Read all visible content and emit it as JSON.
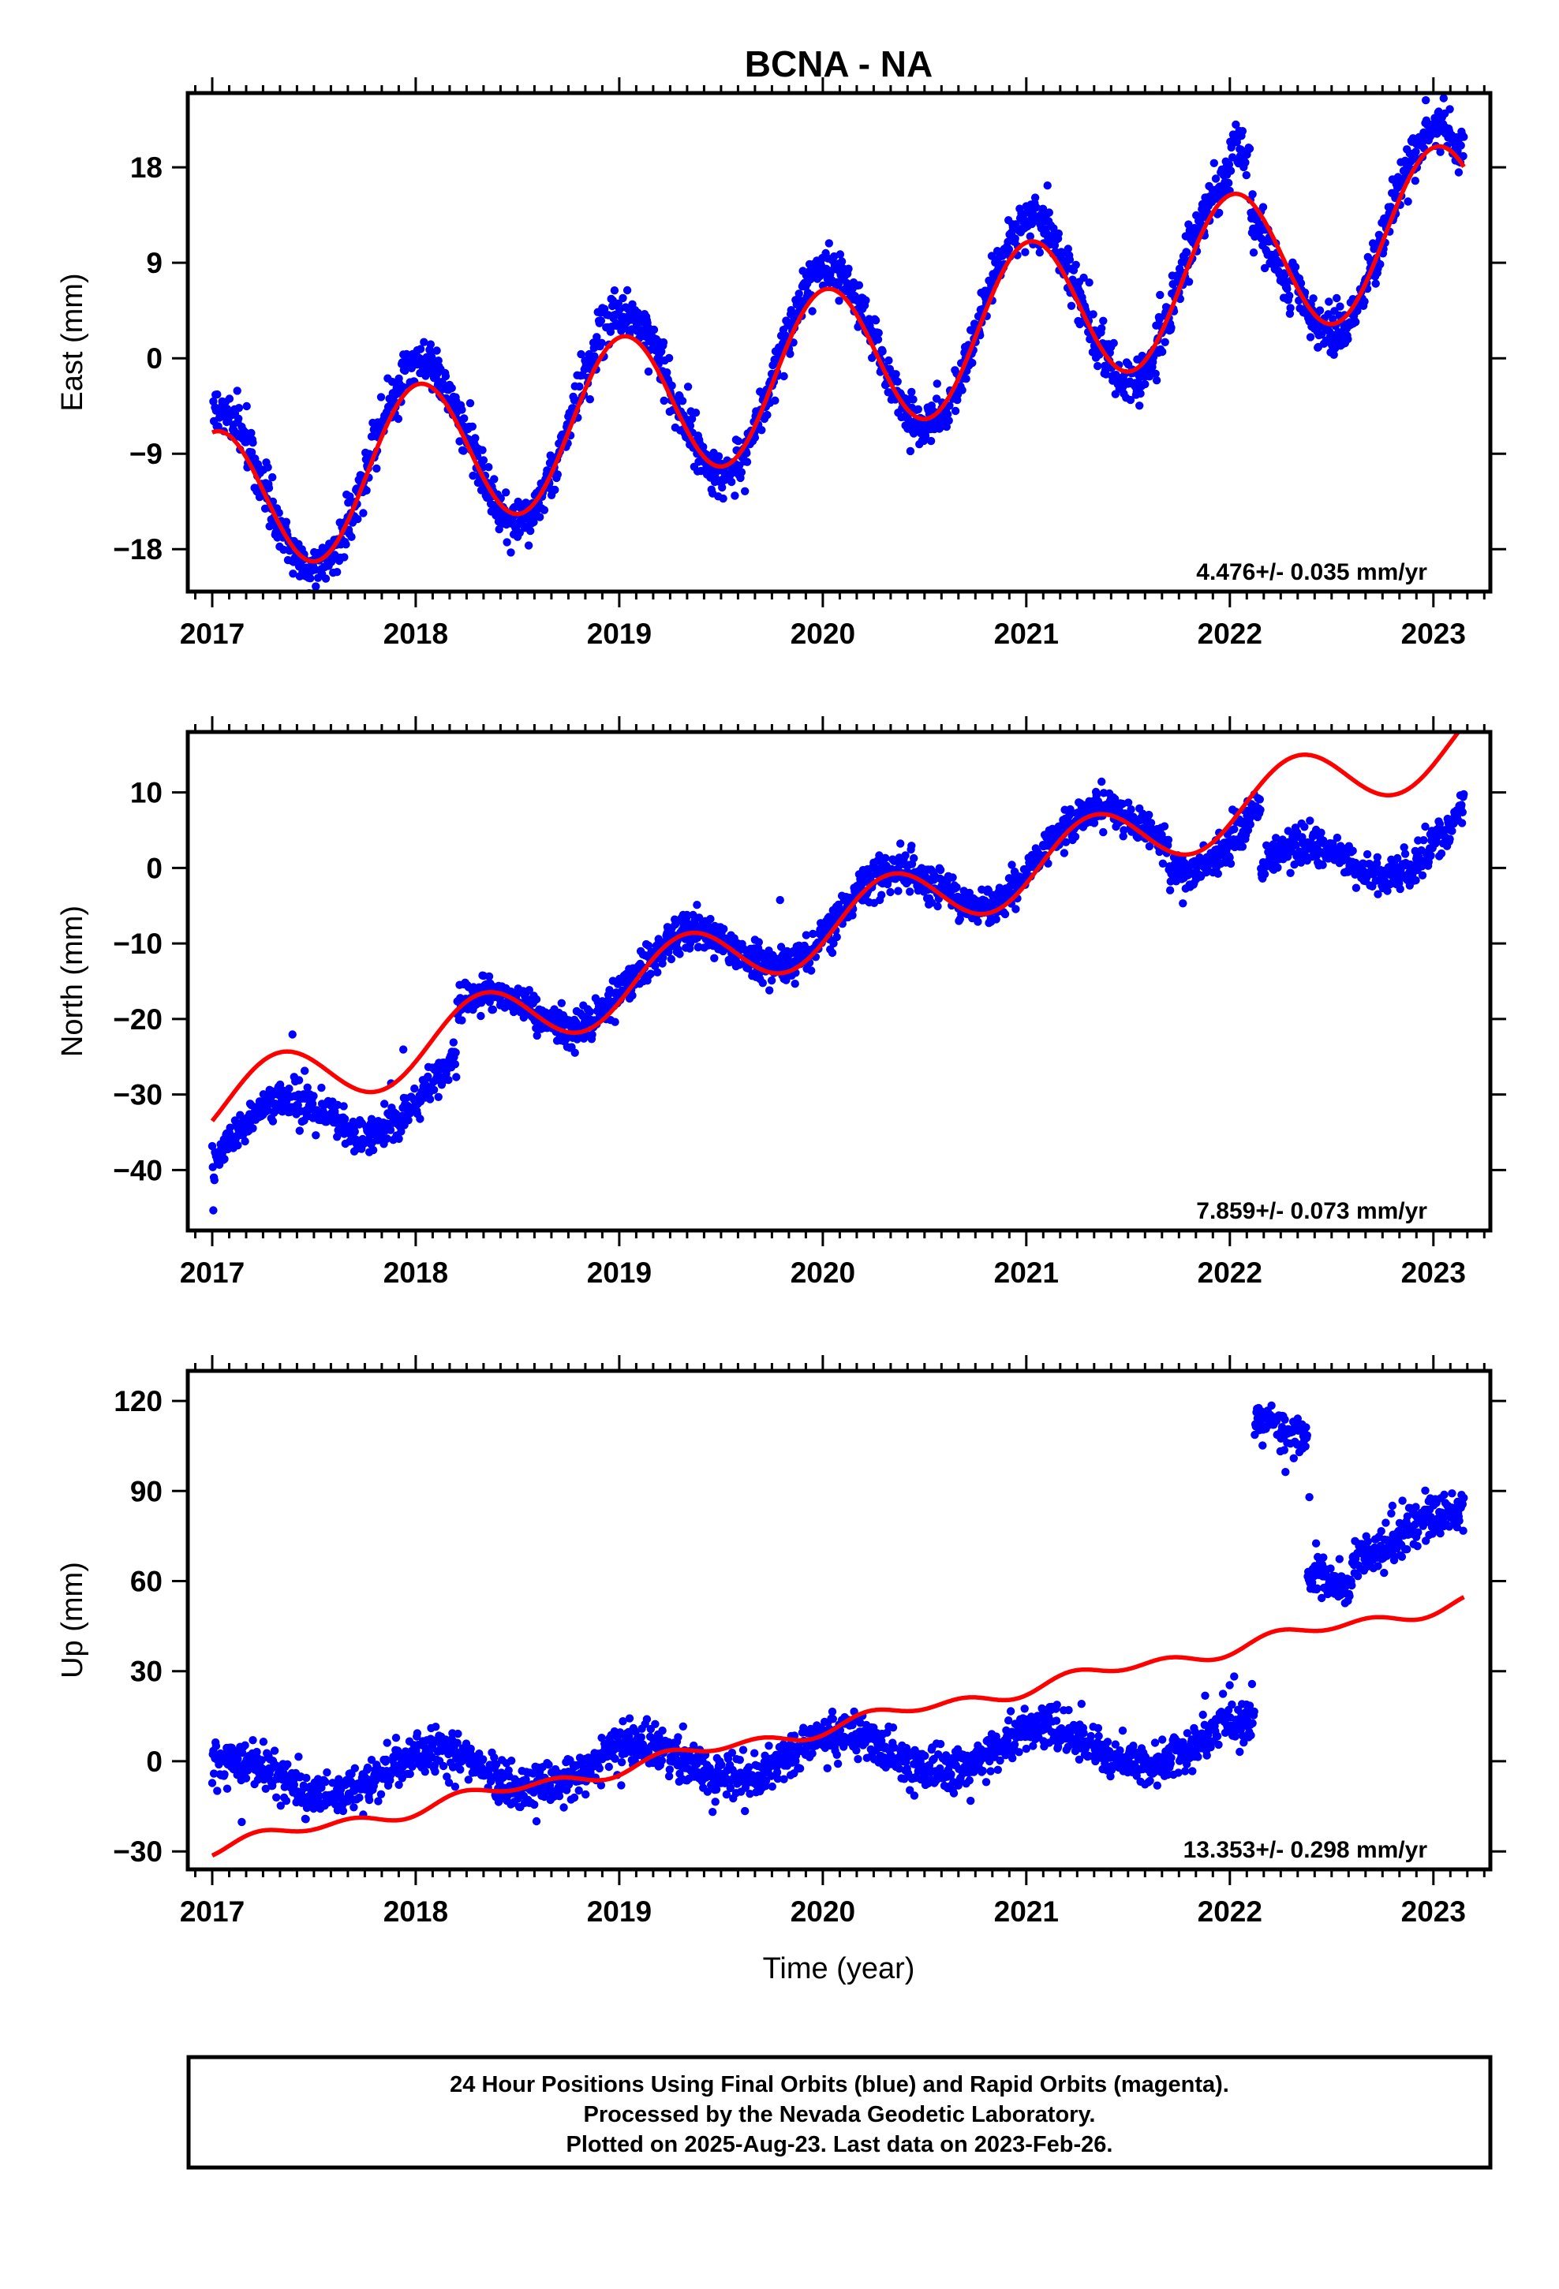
{
  "title": "BCNA - NA",
  "xlabel": "Time (year)",
  "footer": {
    "line1": "24 Hour Positions Using Final Orbits (blue) and Rapid Orbits (magenta).",
    "line2": "Processed by the Nevada Geodetic Laboratory.",
    "line3": "Plotted on 2025-Aug-23. Last data on 2023-Feb-26."
  },
  "colors": {
    "observations": "#0000ff",
    "model": "#ff0000",
    "frame": "#000000"
  },
  "chart_data": [
    {
      "type": "scatter",
      "panel": "east",
      "ylabel": "East (mm)",
      "rate_label": "4.476+/- 0.035 mm/yr",
      "xlim": [
        2016.88,
        2023.28
      ],
      "ylim": [
        -22,
        25
      ],
      "xticks": [
        2017,
        2018,
        2019,
        2020,
        2021,
        2022,
        2023
      ],
      "yticks": [
        -18,
        -9,
        0,
        9,
        18
      ],
      "ytick_labels": [
        "−18",
        "−9",
        "0",
        "9",
        "18"
      ],
      "grid": false,
      "data_range": [
        2017.0,
        2023.15
      ],
      "model": {
        "offset": -14.2,
        "rate": 4.476,
        "annual_sin": 0.6,
        "annual_cos": 7.2,
        "semiannual_sin": 0,
        "semiannual_cos": 0
      },
      "observation_pattern": {
        "offset": -13.6,
        "rate": 4.476,
        "annual_sin": 0.8,
        "annual_cos": 8.6,
        "scatter": 1.1
      },
      "observation_segments": [
        {
          "start": 2022.0,
          "end": 2022.1,
          "shift": 2.5
        },
        {
          "start": 2022.1,
          "end": 2022.3,
          "shift": -3.0
        }
      ]
    },
    {
      "type": "scatter",
      "panel": "north",
      "ylabel": "North (mm)",
      "rate_label": "7.859+/- 0.073 mm/yr",
      "xlim": [
        2016.88,
        2023.28
      ],
      "ylim": [
        -48,
        18
      ],
      "xticks": [
        2017,
        2018,
        2019,
        2020,
        2021,
        2022,
        2023
      ],
      "yticks": [
        -40,
        -30,
        -20,
        -10,
        0,
        10
      ],
      "ytick_labels": [
        "−40",
        "−30",
        "−20",
        "−10",
        "0",
        "10"
      ],
      "grid": false,
      "data_range": [
        2017.0,
        2023.15
      ],
      "model": {
        "offset": -31.5,
        "rate": 7.859,
        "annual_sin": 4.0,
        "annual_cos": -2.0,
        "semiannual_sin": 0,
        "semiannual_cos": 0
      },
      "observation_pattern": {
        "offset": -37.5,
        "rate": 8.1,
        "annual_sin": 3.8,
        "annual_cos": -1.6,
        "scatter": 1.2
      },
      "observation_segments": [
        {
          "start": 2017.0,
          "end": 2018.2,
          "shift": 0.0
        },
        {
          "start": 2018.2,
          "end": 2021.7,
          "shift": 6.0
        },
        {
          "start": 2021.7,
          "end": 2022.15,
          "shift": 2.0
        },
        {
          "start": 2022.15,
          "end": 2023.15,
          "shift": -6.5
        }
      ]
    },
    {
      "type": "scatter",
      "panel": "up",
      "ylabel": "Up (mm)",
      "rate_label": "13.353+/- 0.298 mm/yr",
      "xlim": [
        2016.88,
        2023.28
      ],
      "ylim": [
        -36,
        130
      ],
      "xticks": [
        2017,
        2018,
        2019,
        2020,
        2021,
        2022,
        2023
      ],
      "yticks": [
        -30,
        0,
        30,
        60,
        90,
        120
      ],
      "ytick_labels": [
        "−30",
        "0",
        "30",
        "60",
        "90",
        "120"
      ],
      "grid": false,
      "data_range": [
        2017.0,
        2023.15
      ],
      "model": {
        "offset": -29.0,
        "rate": 13.353,
        "annual_sin": 1.2,
        "annual_cos": -1.0,
        "semiannual_sin": 0.8,
        "semiannual_cos": -1.4
      },
      "observation_pattern": {
        "offset": -6.0,
        "rate": 2.6,
        "annual_sin": 3.5,
        "annual_cos": 6.0,
        "scatter": 3.5
      },
      "observation_segments": [
        {
          "start": 2017.0,
          "end": 2022.12,
          "shift": 0.0
        },
        {
          "start": 2022.12,
          "end": 2022.38,
          "shift": 100.0
        },
        {
          "start": 2022.38,
          "end": 2022.6,
          "shift": 57.0
        },
        {
          "start": 2022.6,
          "end": 2023.15,
          "shift": 66.0
        }
      ]
    }
  ]
}
